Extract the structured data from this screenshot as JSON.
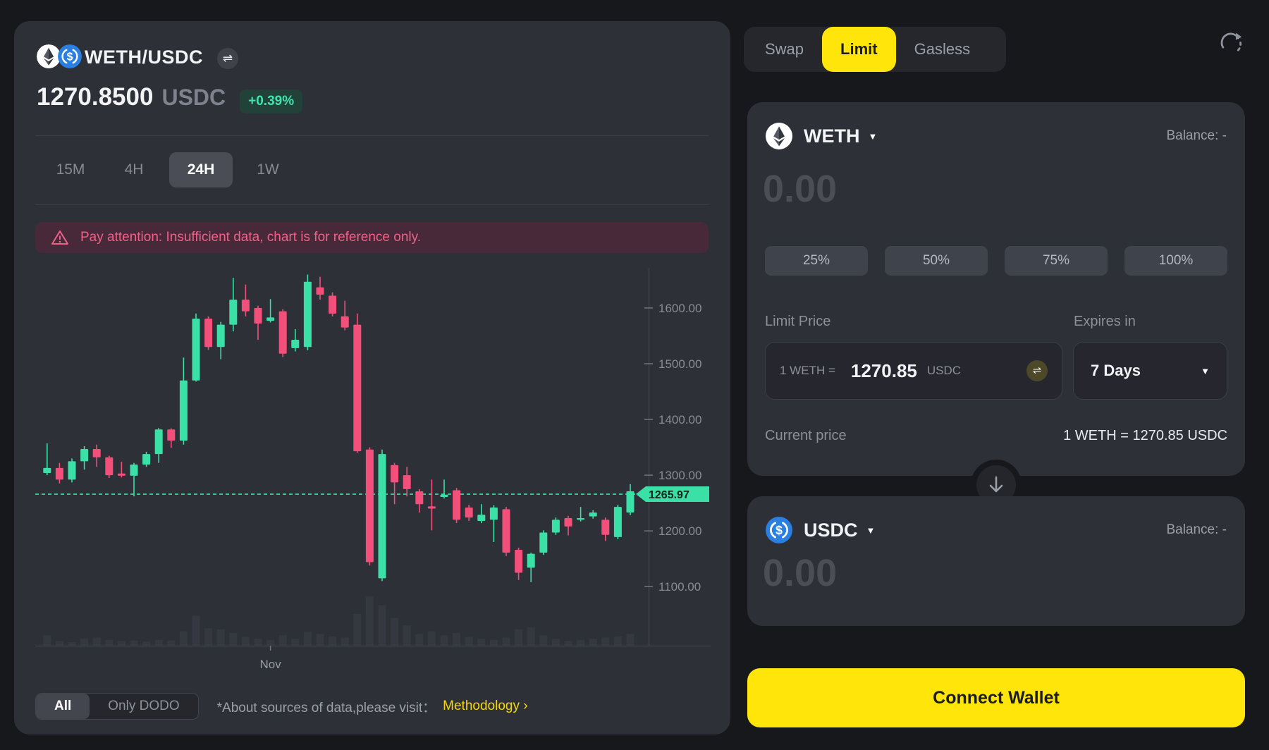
{
  "header": {
    "pair_name": "WETH/USDC",
    "price": "1270.8500",
    "price_unit": "USDC",
    "change_badge": "+0.39%"
  },
  "timeframes": {
    "options": [
      "15M",
      "4H",
      "24H",
      "1W"
    ],
    "selected": "24H"
  },
  "warning_text": "Pay attention: Insufficient data, chart is for reference only.",
  "chart_data": {
    "type": "candlestick",
    "pair": "WETH/USDC",
    "interval": "24H",
    "y_ticks": [
      "1600.00",
      "1500.00",
      "1400.00",
      "1300.00",
      "1200.00",
      "1100.00"
    ],
    "y_tick_values": [
      1600,
      1500,
      1400,
      1300,
      1200,
      1100
    ],
    "ylim": [
      1075,
      1672
    ],
    "current_price": 1265.97,
    "current_price_label": "1265.97",
    "x_label": "Nov",
    "x_label_index": 18,
    "up_color": "#3be0a6",
    "down_color": "#f2507a",
    "grid": false,
    "legend": "none",
    "candles_format": [
      "open",
      "high",
      "low",
      "close",
      "volume"
    ],
    "candles": [
      [
        1304,
        1357,
        1300,
        1313,
        18
      ],
      [
        1313,
        1322,
        1285,
        1292,
        8
      ],
      [
        1292,
        1330,
        1287,
        1325,
        6
      ],
      [
        1325,
        1352,
        1310,
        1347,
        12
      ],
      [
        1347,
        1355,
        1315,
        1332,
        14
      ],
      [
        1332,
        1335,
        1295,
        1300,
        10
      ],
      [
        1303,
        1324,
        1296,
        1299,
        8
      ],
      [
        1299,
        1322,
        1262,
        1319,
        9
      ],
      [
        1319,
        1342,
        1315,
        1338,
        7
      ],
      [
        1338,
        1385,
        1322,
        1382,
        10
      ],
      [
        1382,
        1384,
        1349,
        1362,
        9
      ],
      [
        1362,
        1511,
        1355,
        1470,
        25
      ],
      [
        1470,
        1590,
        1468,
        1581,
        52
      ],
      [
        1581,
        1585,
        1525,
        1530,
        30
      ],
      [
        1530,
        1575,
        1508,
        1570,
        28
      ],
      [
        1570,
        1654,
        1558,
        1615,
        22
      ],
      [
        1615,
        1642,
        1585,
        1594,
        15
      ],
      [
        1600,
        1604,
        1543,
        1572,
        12
      ],
      [
        1577,
        1616,
        1574,
        1583,
        10
      ],
      [
        1594,
        1598,
        1512,
        1518,
        18
      ],
      [
        1528,
        1562,
        1522,
        1543,
        12
      ],
      [
        1530,
        1660,
        1524,
        1647,
        24
      ],
      [
        1637,
        1656,
        1615,
        1624,
        20
      ],
      [
        1622,
        1628,
        1585,
        1590,
        16
      ],
      [
        1585,
        1613,
        1560,
        1565,
        14
      ],
      [
        1570,
        1590,
        1340,
        1343,
        55
      ],
      [
        1346,
        1350,
        1138,
        1144,
        85
      ],
      [
        1115,
        1346,
        1110,
        1338,
        70
      ],
      [
        1318,
        1322,
        1248,
        1287,
        48
      ],
      [
        1300,
        1315,
        1262,
        1275,
        35
      ],
      [
        1271,
        1275,
        1233,
        1248,
        20
      ],
      [
        1244,
        1292,
        1201,
        1240,
        25
      ],
      [
        1261,
        1292,
        1258,
        1265,
        18
      ],
      [
        1273,
        1277,
        1214,
        1220,
        22
      ],
      [
        1242,
        1247,
        1218,
        1224,
        15
      ],
      [
        1218,
        1248,
        1214,
        1229,
        12
      ],
      [
        1220,
        1246,
        1180,
        1242,
        10
      ],
      [
        1239,
        1243,
        1155,
        1161,
        14
      ],
      [
        1166,
        1170,
        1112,
        1125,
        28
      ],
      [
        1134,
        1161,
        1108,
        1159,
        32
      ],
      [
        1161,
        1201,
        1157,
        1197,
        18
      ],
      [
        1197,
        1224,
        1193,
        1220,
        12
      ],
      [
        1223,
        1227,
        1192,
        1208,
        8
      ],
      [
        1220,
        1243,
        1217,
        1223,
        10
      ],
      [
        1226,
        1237,
        1222,
        1233,
        12
      ],
      [
        1220,
        1224,
        1182,
        1193,
        14
      ],
      [
        1189,
        1247,
        1185,
        1243,
        16
      ],
      [
        1233,
        1284,
        1228,
        1271,
        20
      ]
    ]
  },
  "chart_footer": {
    "source_options": [
      "All",
      "Only DODO"
    ],
    "selected_source": "All",
    "note": "*About sources of data,please visit：",
    "link_label": "Methodology ›"
  },
  "swap_panel": {
    "tabs": [
      "Swap",
      "Limit",
      "Gasless"
    ],
    "selected_tab": "Limit",
    "sell": {
      "token": "WETH",
      "balance_label": "Balance: -",
      "amount_placeholder": "0.00",
      "percent_options": [
        "25%",
        "50%",
        "75%",
        "100%"
      ]
    },
    "limit": {
      "label": "Limit Price",
      "prefix": "1 WETH =",
      "value": "1270.85",
      "unit": "USDC",
      "expires_label": "Expires in",
      "expires_value": "7 Days",
      "current_price_label": "Current price",
      "current_price_value": "1 WETH = 1270.85 USDC"
    },
    "buy": {
      "token": "USDC",
      "balance_label": "Balance: -",
      "amount_placeholder": "0.00"
    },
    "connect_button": "Connect Wallet"
  },
  "colors": {
    "accent_yellow": "#ffe50a",
    "up": "#3be0a6",
    "down": "#f2507a",
    "warning": "#ee6287"
  }
}
